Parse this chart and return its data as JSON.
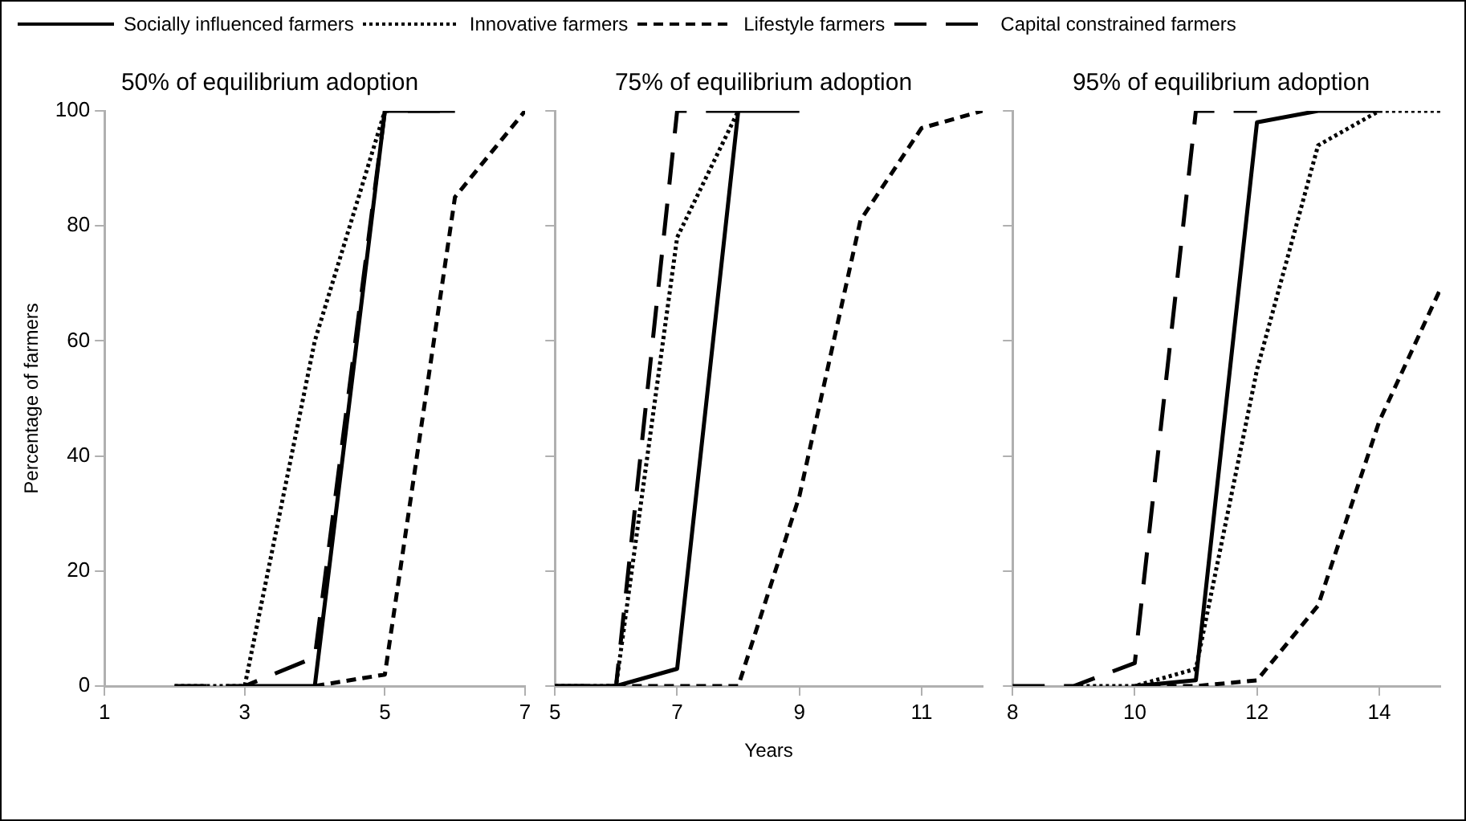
{
  "chart_data": [
    {
      "type": "line",
      "title": "50% of equilibrium adoption",
      "ylabel": "Percentage of farmers",
      "legend": "top",
      "grid": false,
      "xlim": [
        1,
        7
      ],
      "xticks": [
        1,
        3,
        5,
        7
      ],
      "ylim": [
        0,
        100
      ],
      "yticks": [
        0,
        20,
        40,
        60,
        80,
        100
      ],
      "marker": "none",
      "series": [
        {
          "name": "Socially influenced farmers",
          "color": "#000000",
          "line_style": "solid",
          "x": [
            3,
            4,
            5,
            6
          ],
          "values": [
            0,
            0,
            100,
            100
          ]
        },
        {
          "name": "Innovative farmers",
          "color": "#000000",
          "line_style": "dotted",
          "x": [
            2,
            3,
            4,
            5
          ],
          "values": [
            0,
            0,
            60,
            100
          ]
        },
        {
          "name": "Lifestyle farmers",
          "color": "#000000",
          "line_style": "dashed",
          "x": [
            4,
            5,
            6,
            7
          ],
          "values": [
            0,
            2,
            85,
            100
          ]
        },
        {
          "name": "Capital constrained farmers",
          "color": "#000000",
          "line_style": "longdash",
          "x": [
            2,
            3,
            4,
            5,
            6
          ],
          "values": [
            0,
            0,
            5,
            100,
            100
          ]
        }
      ]
    },
    {
      "type": "line",
      "title": "75% of equilibrium adoption",
      "xlabel": "Years",
      "grid": false,
      "tick_labels": "x",
      "xlim": [
        5,
        12
      ],
      "xticks": [
        5,
        7,
        9,
        11
      ],
      "ylim": [
        0,
        100
      ],
      "yticks": [
        0,
        20,
        40,
        60,
        80,
        100
      ],
      "marker": "none",
      "series": [
        {
          "color": "#000000",
          "line_style": "solid",
          "x": [
            5,
            6,
            7,
            8,
            9
          ],
          "values": [
            0,
            0,
            3,
            100,
            100
          ]
        },
        {
          "color": "#000000",
          "line_style": "dotted",
          "x": [
            5,
            6,
            7,
            8
          ],
          "values": [
            0,
            0,
            78,
            100
          ]
        },
        {
          "color": "#000000",
          "line_style": "dashed",
          "x": [
            6,
            7,
            8,
            9,
            10,
            11,
            12
          ],
          "values": [
            0,
            0,
            0,
            33,
            81,
            97,
            100
          ]
        },
        {
          "color": "#000000",
          "line_style": "longdash",
          "x": [
            5,
            6,
            7,
            8
          ],
          "values": [
            0,
            0,
            100,
            100
          ]
        }
      ]
    },
    {
      "type": "line",
      "title": "95% of equilibrium adoption",
      "grid": false,
      "tick_labels": "x",
      "xlim": [
        8,
        15
      ],
      "xticks": [
        8,
        10,
        12,
        14
      ],
      "ylim": [
        0,
        100
      ],
      "yticks": [
        0,
        20,
        40,
        60,
        80,
        100
      ],
      "marker": "none",
      "series": [
        {
          "color": "#000000",
          "line_style": "solid",
          "x": [
            10,
            11,
            12,
            13,
            14
          ],
          "values": [
            0,
            1,
            98,
            100,
            100
          ]
        },
        {
          "color": "#000000",
          "line_style": "dotted",
          "x": [
            9,
            10,
            11,
            12,
            13,
            14,
            15
          ],
          "values": [
            0,
            0,
            3,
            55,
            94,
            100,
            100
          ]
        },
        {
          "color": "#000000",
          "line_style": "dashed",
          "x": [
            10,
            11,
            12,
            13,
            14,
            15
          ],
          "values": [
            0,
            0,
            1,
            14,
            46,
            69
          ]
        },
        {
          "color": "#000000",
          "line_style": "longdash",
          "x": [
            8,
            9,
            10,
            11,
            12
          ],
          "values": [
            0,
            0,
            4,
            100,
            100
          ]
        }
      ]
    }
  ]
}
